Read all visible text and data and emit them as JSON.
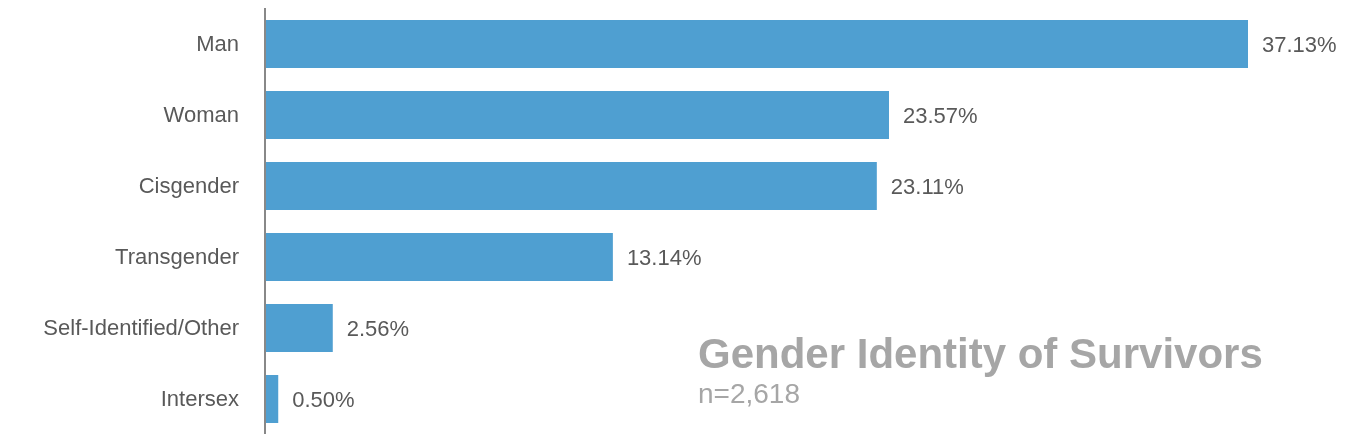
{
  "chart_data": {
    "type": "bar",
    "orientation": "horizontal",
    "title": "Gender Identity of Survivors",
    "subtitle": "n=2,618",
    "categories": [
      "Man",
      "Woman",
      "Cisgender",
      "Transgender",
      "Self-Identified/Other",
      "Intersex"
    ],
    "values": [
      37.13,
      23.57,
      23.11,
      13.14,
      2.56,
      0.5
    ],
    "value_labels": [
      "37.13%",
      "23.57%",
      "23.11%",
      "13.14%",
      "2.56%",
      "0.50%"
    ],
    "color": "#4f9fd1",
    "grid": false,
    "legend": false,
    "tick_labels": "y"
  }
}
